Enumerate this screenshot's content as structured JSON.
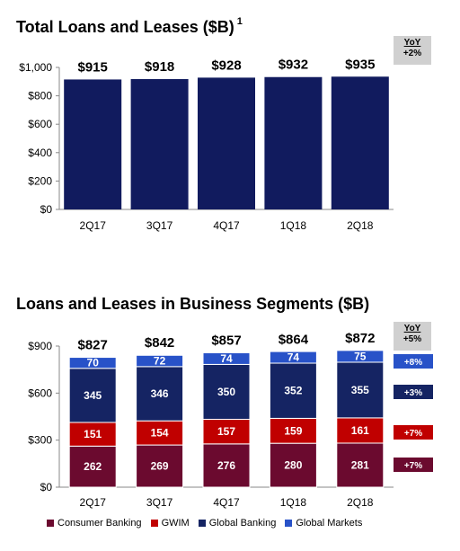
{
  "colors": {
    "navy": "#111b5e",
    "consumer": "#6b0a2f",
    "gwim": "#c00000",
    "global_banking": "#152463",
    "global_markets": "#2852c8",
    "yoy_bg": "#d0d0d0"
  },
  "yoy_header": "YoY",
  "chart_data": [
    {
      "type": "bar",
      "title": "Total Loans and Leases ($B)",
      "title_note": "1",
      "categories": [
        "2Q17",
        "3Q17",
        "4Q17",
        "1Q18",
        "2Q18"
      ],
      "values": [
        915,
        918,
        928,
        932,
        935
      ],
      "value_labels": [
        "$915",
        "$918",
        "$928",
        "$932",
        "$935"
      ],
      "ylim": [
        0,
        1000
      ],
      "yticks": [
        0,
        200,
        400,
        600,
        800,
        1000
      ],
      "ytick_labels": [
        "$0",
        "$200",
        "$400",
        "$600",
        "$800",
        "$1,000"
      ],
      "yoy": "+2%",
      "grid": false
    },
    {
      "type": "bar",
      "stacked": true,
      "title": "Loans and Leases in Business Segments ($B)",
      "categories": [
        "2Q17",
        "3Q17",
        "4Q17",
        "1Q18",
        "2Q18"
      ],
      "series": [
        {
          "name": "Consumer Banking",
          "values": [
            262,
            269,
            276,
            280,
            281
          ],
          "yoy": "+7%"
        },
        {
          "name": "GWIM",
          "values": [
            151,
            154,
            157,
            159,
            161
          ],
          "yoy": "+7%"
        },
        {
          "name": "Global Banking",
          "values": [
            345,
            346,
            350,
            352,
            355
          ],
          "yoy": "+3%"
        },
        {
          "name": "Global Markets",
          "values": [
            70,
            72,
            74,
            74,
            75
          ],
          "yoy": "+8%"
        }
      ],
      "totals": [
        "$827",
        "$842",
        "$857",
        "$864",
        "$872"
      ],
      "total_values": [
        827,
        842,
        857,
        864,
        872
      ],
      "ylim": [
        0,
        900
      ],
      "yticks": [
        0,
        300,
        600,
        900
      ],
      "ytick_labels": [
        "$0",
        "$300",
        "$600",
        "$900"
      ],
      "yoy": "+5%",
      "legend_position": "bottom",
      "grid": false
    }
  ]
}
